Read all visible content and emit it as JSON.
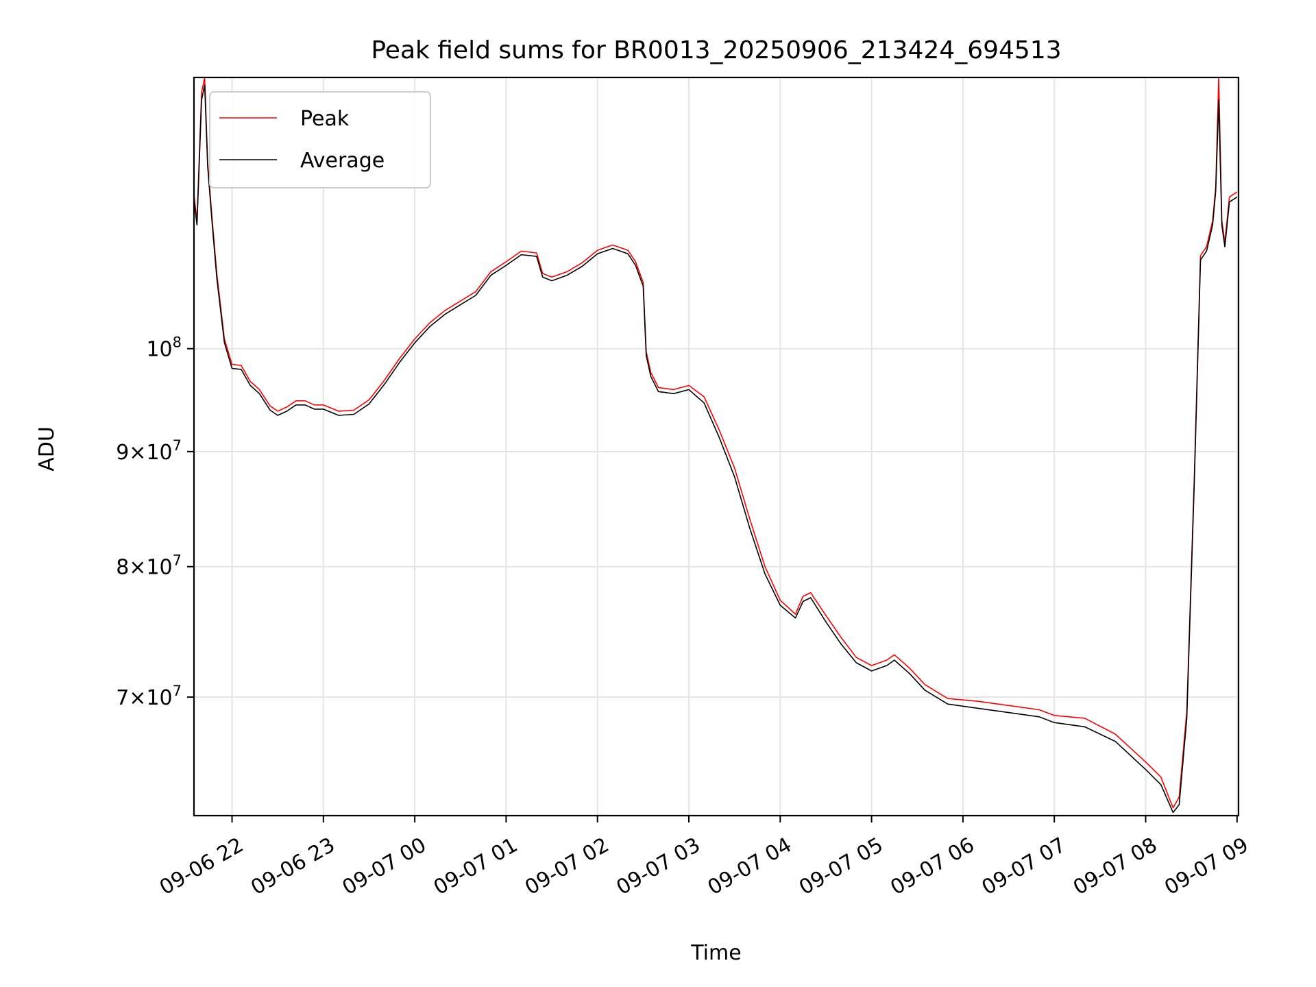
{
  "chart_data": {
    "type": "line",
    "title": "Peak field sums for BR0013_20250906_213424_694513",
    "xlabel": "Time",
    "ylabel": "ADU",
    "yscale": "log",
    "xlim": [
      "2025-09-06 21:35",
      "2025-09-07 09:01"
    ],
    "ylim": [
      62000000,
      132000000
    ],
    "grid": true,
    "legend_position": "top-left",
    "x_ticks": [
      {
        "label": "09-06 22",
        "t": "2025-09-06 22:00"
      },
      {
        "label": "09-06 23",
        "t": "2025-09-06 23:00"
      },
      {
        "label": "09-07 00",
        "t": "2025-09-07 00:00"
      },
      {
        "label": "09-07 01",
        "t": "2025-09-07 01:00"
      },
      {
        "label": "09-07 02",
        "t": "2025-09-07 02:00"
      },
      {
        "label": "09-07 03",
        "t": "2025-09-07 03:00"
      },
      {
        "label": "09-07 04",
        "t": "2025-09-07 04:00"
      },
      {
        "label": "09-07 05",
        "t": "2025-09-07 05:00"
      },
      {
        "label": "09-07 06",
        "t": "2025-09-07 06:00"
      },
      {
        "label": "09-07 07",
        "t": "2025-09-07 07:00"
      },
      {
        "label": "09-07 08",
        "t": "2025-09-07 08:00"
      },
      {
        "label": "09-07 09",
        "t": "2025-09-07 09:00"
      }
    ],
    "y_ticks": [
      {
        "value": 100000000,
        "mantissa": "",
        "exp": "8"
      },
      {
        "value": 90000000,
        "mantissa": "9",
        "exp": "7"
      },
      {
        "value": 80000000,
        "mantissa": "8",
        "exp": "7"
      },
      {
        "value": 70000000,
        "mantissa": "7",
        "exp": "7"
      }
    ],
    "series": [
      {
        "name": "Peak",
        "color": "#ff0000",
        "points": [
          [
            "2025-09-06 21:35",
            117000000
          ],
          [
            "2025-09-06 21:37",
            114000000
          ],
          [
            "2025-09-06 21:40",
            130000000
          ],
          [
            "2025-09-06 21:42",
            132000000
          ],
          [
            "2025-09-06 21:44",
            121000000
          ],
          [
            "2025-09-06 21:47",
            114000000
          ],
          [
            "2025-09-06 21:50",
            108000000
          ],
          [
            "2025-09-06 21:55",
            101000000
          ],
          [
            "2025-09-06 22:00",
            98400000
          ],
          [
            "2025-09-06 22:06",
            98300000
          ],
          [
            "2025-09-06 22:12",
            96700000
          ],
          [
            "2025-09-06 22:18",
            95900000
          ],
          [
            "2025-09-06 22:25",
            94300000
          ],
          [
            "2025-09-06 22:30",
            93800000
          ],
          [
            "2025-09-06 22:36",
            94200000
          ],
          [
            "2025-09-06 22:42",
            94800000
          ],
          [
            "2025-09-06 22:48",
            94800000
          ],
          [
            "2025-09-06 22:54",
            94400000
          ],
          [
            "2025-09-06 23:00",
            94400000
          ],
          [
            "2025-09-06 23:10",
            93800000
          ],
          [
            "2025-09-06 23:20",
            93900000
          ],
          [
            "2025-09-06 23:30",
            94900000
          ],
          [
            "2025-09-06 23:40",
            96800000
          ],
          [
            "2025-09-06 23:50",
            99000000
          ],
          [
            "2025-09-07 00:00",
            101000000
          ],
          [
            "2025-09-07 00:10",
            102700000
          ],
          [
            "2025-09-07 00:20",
            104000000
          ],
          [
            "2025-09-07 00:30",
            105000000
          ],
          [
            "2025-09-07 00:40",
            106000000
          ],
          [
            "2025-09-07 00:50",
            108200000
          ],
          [
            "2025-09-07 01:00",
            109300000
          ],
          [
            "2025-09-07 01:10",
            110500000
          ],
          [
            "2025-09-07 01:20",
            110300000
          ],
          [
            "2025-09-07 01:24",
            108000000
          ],
          [
            "2025-09-07 01:30",
            107600000
          ],
          [
            "2025-09-07 01:40",
            108200000
          ],
          [
            "2025-09-07 01:50",
            109200000
          ],
          [
            "2025-09-07 02:00",
            110600000
          ],
          [
            "2025-09-07 02:10",
            111200000
          ],
          [
            "2025-09-07 02:20",
            110600000
          ],
          [
            "2025-09-07 02:25",
            109300000
          ],
          [
            "2025-09-07 02:30",
            107000000
          ],
          [
            "2025-09-07 02:32",
            99700000
          ],
          [
            "2025-09-07 02:35",
            97600000
          ],
          [
            "2025-09-07 02:40",
            96100000
          ],
          [
            "2025-09-07 02:50",
            95900000
          ],
          [
            "2025-09-07 03:00",
            96300000
          ],
          [
            "2025-09-07 03:10",
            95200000
          ],
          [
            "2025-09-07 03:20",
            92000000
          ],
          [
            "2025-09-07 03:30",
            88500000
          ],
          [
            "2025-09-07 03:40",
            84000000
          ],
          [
            "2025-09-07 03:50",
            80000000
          ],
          [
            "2025-09-07 04:00",
            77300000
          ],
          [
            "2025-09-07 04:10",
            76200000
          ],
          [
            "2025-09-07 04:15",
            77600000
          ],
          [
            "2025-09-07 04:20",
            77900000
          ],
          [
            "2025-09-07 04:30",
            76100000
          ],
          [
            "2025-09-07 04:40",
            74400000
          ],
          [
            "2025-09-07 04:50",
            72900000
          ],
          [
            "2025-09-07 05:00",
            72300000
          ],
          [
            "2025-09-07 05:10",
            72700000
          ],
          [
            "2025-09-07 05:15",
            73100000
          ],
          [
            "2025-09-07 05:25",
            72100000
          ],
          [
            "2025-09-07 05:35",
            70900000
          ],
          [
            "2025-09-07 05:50",
            69900000
          ],
          [
            "2025-09-07 06:10",
            69700000
          ],
          [
            "2025-09-07 06:30",
            69400000
          ],
          [
            "2025-09-07 06:50",
            69100000
          ],
          [
            "2025-09-07 07:00",
            68700000
          ],
          [
            "2025-09-07 07:20",
            68500000
          ],
          [
            "2025-09-07 07:40",
            67400000
          ],
          [
            "2025-09-07 08:00",
            65500000
          ],
          [
            "2025-09-07 08:10",
            64500000
          ],
          [
            "2025-09-07 08:18",
            62500000
          ],
          [
            "2025-09-07 08:22",
            63200000
          ],
          [
            "2025-09-07 08:27",
            69000000
          ],
          [
            "2025-09-07 08:32",
            88000000
          ],
          [
            "2025-09-07 08:36",
            110000000
          ],
          [
            "2025-09-07 08:40",
            111000000
          ],
          [
            "2025-09-07 08:44",
            114000000
          ],
          [
            "2025-09-07 08:46",
            118000000
          ],
          [
            "2025-09-07 08:48",
            132000000
          ],
          [
            "2025-09-07 08:50",
            114000000
          ],
          [
            "2025-09-07 08:52",
            111500000
          ],
          [
            "2025-09-07 08:55",
            116800000
          ],
          [
            "2025-09-07 09:00",
            117400000
          ]
        ]
      },
      {
        "name": "Average",
        "color": "#000000",
        "points": [
          [
            "2025-09-06 21:35",
            116500000
          ],
          [
            "2025-09-06 21:37",
            113500000
          ],
          [
            "2025-09-06 21:40",
            129000000
          ],
          [
            "2025-09-06 21:42",
            131000000
          ],
          [
            "2025-09-06 21:44",
            120500000
          ],
          [
            "2025-09-06 21:47",
            113500000
          ],
          [
            "2025-09-06 21:50",
            107500000
          ],
          [
            "2025-09-06 21:55",
            100600000
          ],
          [
            "2025-09-06 22:00",
            98000000
          ],
          [
            "2025-09-06 22:06",
            97900000
          ],
          [
            "2025-09-06 22:12",
            96300000
          ],
          [
            "2025-09-06 22:18",
            95500000
          ],
          [
            "2025-09-06 22:25",
            93900000
          ],
          [
            "2025-09-06 22:30",
            93400000
          ],
          [
            "2025-09-06 22:36",
            93800000
          ],
          [
            "2025-09-06 22:42",
            94400000
          ],
          [
            "2025-09-06 22:48",
            94400000
          ],
          [
            "2025-09-06 22:54",
            94000000
          ],
          [
            "2025-09-06 23:00",
            94000000
          ],
          [
            "2025-09-06 23:10",
            93400000
          ],
          [
            "2025-09-06 23:20",
            93500000
          ],
          [
            "2025-09-06 23:30",
            94500000
          ],
          [
            "2025-09-06 23:40",
            96400000
          ],
          [
            "2025-09-06 23:50",
            98600000
          ],
          [
            "2025-09-07 00:00",
            100600000
          ],
          [
            "2025-09-07 00:10",
            102300000
          ],
          [
            "2025-09-07 00:20",
            103600000
          ],
          [
            "2025-09-07 00:30",
            104600000
          ],
          [
            "2025-09-07 00:40",
            105600000
          ],
          [
            "2025-09-07 00:50",
            107800000
          ],
          [
            "2025-09-07 01:00",
            108900000
          ],
          [
            "2025-09-07 01:10",
            110100000
          ],
          [
            "2025-09-07 01:20",
            109900000
          ],
          [
            "2025-09-07 01:24",
            107600000
          ],
          [
            "2025-09-07 01:30",
            107200000
          ],
          [
            "2025-09-07 01:40",
            107800000
          ],
          [
            "2025-09-07 01:50",
            108800000
          ],
          [
            "2025-09-07 02:00",
            110200000
          ],
          [
            "2025-09-07 02:10",
            110800000
          ],
          [
            "2025-09-07 02:20",
            110200000
          ],
          [
            "2025-09-07 02:25",
            108900000
          ],
          [
            "2025-09-07 02:30",
            106600000
          ],
          [
            "2025-09-07 02:32",
            99300000
          ],
          [
            "2025-09-07 02:35",
            97200000
          ],
          [
            "2025-09-07 02:40",
            95700000
          ],
          [
            "2025-09-07 02:50",
            95500000
          ],
          [
            "2025-09-07 03:00",
            95900000
          ],
          [
            "2025-09-07 03:10",
            94600000
          ],
          [
            "2025-09-07 03:20",
            91300000
          ],
          [
            "2025-09-07 03:30",
            87700000
          ],
          [
            "2025-09-07 03:40",
            83200000
          ],
          [
            "2025-09-07 03:50",
            79400000
          ],
          [
            "2025-09-07 04:00",
            76900000
          ],
          [
            "2025-09-07 04:10",
            75900000
          ],
          [
            "2025-09-07 04:15",
            77200000
          ],
          [
            "2025-09-07 04:20",
            77500000
          ],
          [
            "2025-09-07 04:30",
            75600000
          ],
          [
            "2025-09-07 04:40",
            73900000
          ],
          [
            "2025-09-07 04:50",
            72500000
          ],
          [
            "2025-09-07 05:00",
            71900000
          ],
          [
            "2025-09-07 05:10",
            72300000
          ],
          [
            "2025-09-07 05:15",
            72700000
          ],
          [
            "2025-09-07 05:25",
            71700000
          ],
          [
            "2025-09-07 05:35",
            70500000
          ],
          [
            "2025-09-07 05:50",
            69500000
          ],
          [
            "2025-09-07 06:10",
            69200000
          ],
          [
            "2025-09-07 06:30",
            68900000
          ],
          [
            "2025-09-07 06:50",
            68600000
          ],
          [
            "2025-09-07 07:00",
            68200000
          ],
          [
            "2025-09-07 07:20",
            67900000
          ],
          [
            "2025-09-07 07:40",
            66900000
          ],
          [
            "2025-09-07 08:00",
            65000000
          ],
          [
            "2025-09-07 08:10",
            64000000
          ],
          [
            "2025-09-07 08:18",
            62200000
          ],
          [
            "2025-09-07 08:22",
            62700000
          ],
          [
            "2025-09-07 08:27",
            68500000
          ],
          [
            "2025-09-07 08:32",
            87500000
          ],
          [
            "2025-09-07 08:36",
            109500000
          ],
          [
            "2025-09-07 08:40",
            110500000
          ],
          [
            "2025-09-07 08:44",
            113500000
          ],
          [
            "2025-09-07 08:46",
            117500000
          ],
          [
            "2025-09-07 08:48",
            129000000
          ],
          [
            "2025-09-07 08:50",
            113500000
          ],
          [
            "2025-09-07 08:52",
            111000000
          ],
          [
            "2025-09-07 08:55",
            116200000
          ],
          [
            "2025-09-07 09:00",
            116800000
          ]
        ]
      }
    ]
  }
}
